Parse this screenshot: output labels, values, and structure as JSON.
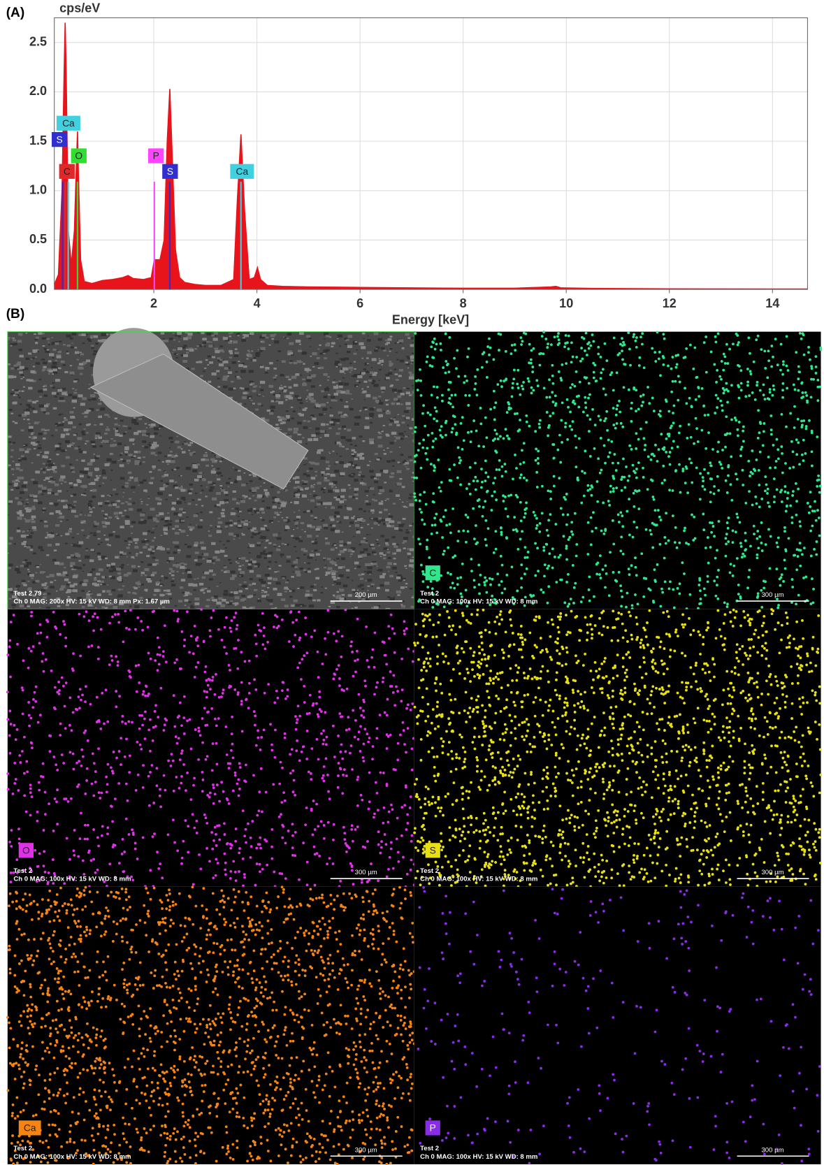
{
  "chart_data": {
    "type": "area",
    "panel_label": "(A)",
    "y_label": "cps/eV",
    "x_label": "Energy [keV]",
    "color": "#e8141c",
    "x": [
      0.07,
      0.15,
      0.22,
      0.26,
      0.28,
      0.3,
      0.34,
      0.4,
      0.46,
      0.5,
      0.52,
      0.54,
      0.58,
      0.65,
      0.8,
      1.0,
      1.2,
      1.4,
      1.5,
      1.6,
      1.8,
      1.95,
      2.01,
      2.06,
      2.12,
      2.2,
      2.26,
      2.31,
      2.36,
      2.42,
      2.5,
      2.6,
      2.8,
      3.0,
      3.3,
      3.55,
      3.62,
      3.69,
      3.76,
      3.85,
      3.95,
      4.01,
      4.07,
      4.2,
      4.5,
      5,
      6,
      7,
      8,
      9,
      9.7,
      9.8,
      9.9,
      10.5,
      12,
      13,
      14,
      14.68
    ],
    "values": [
      0.05,
      0.15,
      1.0,
      2.2,
      2.7,
      2.2,
      0.6,
      0.25,
      0.6,
      1.3,
      1.6,
      1.1,
      0.3,
      0.08,
      0.06,
      0.09,
      0.1,
      0.12,
      0.14,
      0.11,
      0.1,
      0.12,
      0.3,
      0.3,
      0.3,
      0.5,
      1.5,
      2.03,
      1.3,
      0.4,
      0.12,
      0.07,
      0.05,
      0.04,
      0.04,
      0.1,
      0.9,
      1.57,
      0.8,
      0.1,
      0.12,
      0.22,
      0.1,
      0.04,
      0.03,
      0.025,
      0.02,
      0.015,
      0.012,
      0.012,
      0.025,
      0.03,
      0.015,
      0.01,
      0.006,
      0.005,
      0.004,
      0.004
    ],
    "xlim": [
      0.07,
      14.68
    ],
    "xticks": [
      2,
      4,
      6,
      8,
      10,
      12,
      14
    ],
    "ylim": [
      0,
      2.75
    ],
    "yticks": [
      {
        "value": 0,
        "label": "0.0"
      },
      0.5,
      {
        "value": 1,
        "label": "1.0"
      },
      1.5,
      {
        "value": 2,
        "label": "2.0"
      },
      2.5
    ],
    "grid": true,
    "annotations": [
      {
        "text": "Ca",
        "energy": 0.34,
        "color": "#40d0e0"
      },
      {
        "text": "S",
        "energy": 0.23,
        "color": "#3030d0"
      },
      {
        "text": "O",
        "energy": 0.52,
        "color": "#30dd30"
      },
      {
        "text": "C",
        "energy": 0.28,
        "color": "#e02828"
      },
      {
        "text": "P",
        "energy": 2.01,
        "color": "#ff44ff"
      },
      {
        "text": "S",
        "energy": 2.31,
        "color": "#3030d0"
      },
      {
        "text": "Ca",
        "energy": 3.69,
        "color": "#40d0e0"
      }
    ]
  },
  "panel_b": {
    "label": "(B)",
    "images": [
      {
        "title": "Test 2 79",
        "info": "Ch 0   MAG: 200x   HV: 15 kV   WD: 8 mm   Px: 1.67 µm",
        "scale": "200 µm"
      },
      {
        "element": "C",
        "color": "#30e88c",
        "title": "Test 2",
        "info": "Ch 0   MAG: 100x   HV: 15 kV   WD: 8 mm",
        "scale": "300 µm"
      },
      {
        "element": "O",
        "color": "#e030e8",
        "title": "Test 2",
        "info": "Ch 0   MAG: 100x   HV: 15 kV   WD: 8 mm",
        "scale": "300 µm"
      },
      {
        "element": "S",
        "color": "#e8e010",
        "title": "Test 2",
        "info": "Ch 0   MAG: 100x   HV: 15 kV   WD: 8 mm",
        "scale": "300 µm"
      },
      {
        "element": "Ca",
        "color": "#f58412",
        "title": "Test 2",
        "info": "Ch 0   MAG: 100x   HV: 15 kV   WD: 8 mm",
        "scale": "300 µm"
      },
      {
        "element": "P",
        "color": "#8a2be8",
        "title": "Test 2",
        "info": "Ch 0   MAG: 100x   HV: 15 kV   WD: 8 mm",
        "scale": "300 µm"
      }
    ]
  }
}
